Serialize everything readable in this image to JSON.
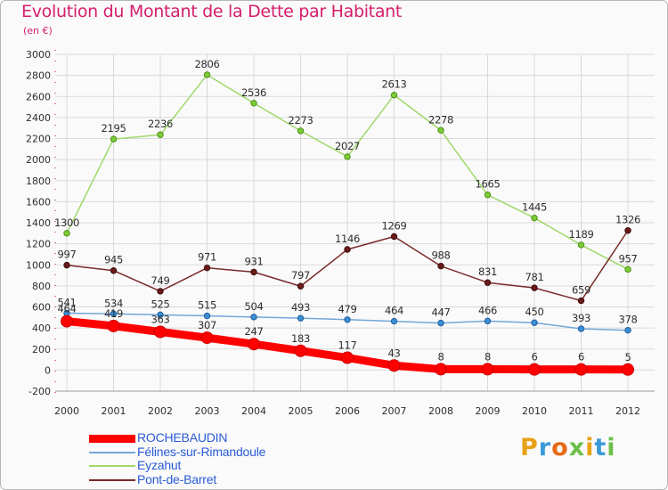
{
  "title": "Evolution du Montant de la Dette par Habitant",
  "unit": "(en €)",
  "logo": "Proxiti",
  "colors": {
    "title": "#d51d6c",
    "grid": "#d9d9d9",
    "axis": "#cc0000",
    "label": "#2d2d2d",
    "legend_text": "#2b5bd6"
  },
  "chart_data": {
    "type": "line",
    "title": "Evolution du Montant de la Dette par Habitant",
    "ylabel": "(en €)",
    "xlabel": "",
    "x": [
      "2000",
      "2001",
      "2002",
      "2003",
      "2004",
      "2005",
      "2006",
      "2007",
      "2008",
      "2009",
      "2010",
      "2011",
      "2012"
    ],
    "ylim": [
      -200,
      3000
    ],
    "yticks": [
      "-200",
      "0",
      "200",
      "400",
      "600",
      "800",
      "1000",
      "1200",
      "1400",
      "1600",
      "1800",
      "2000",
      "2200",
      "2400",
      "2600",
      "2800",
      "3000"
    ],
    "grid": true,
    "legend_position": "bottom-left",
    "series": [
      {
        "name": "ROCHEBAUDIN",
        "color": "#ff0000",
        "values": [
          464,
          419,
          363,
          307,
          247,
          183,
          117,
          43,
          8,
          8,
          6,
          6,
          5
        ],
        "labels": [
          "464",
          "419",
          "363",
          "307",
          "247",
          "183",
          "117",
          "43",
          "8",
          "8",
          "6",
          "6",
          "5"
        ]
      },
      {
        "name": "Félines-sur-Rimandoule",
        "color": "#5b9bd5",
        "values": [
          541,
          534,
          525,
          515,
          504,
          493,
          479,
          464,
          447,
          466,
          450,
          393,
          378
        ],
        "labels": [
          "541",
          "534",
          "525",
          "515",
          "504",
          "493",
          "479",
          "464",
          "447",
          "466",
          "450",
          "393",
          "378"
        ]
      },
      {
        "name": "Eyzahut",
        "color": "#92d050",
        "values": [
          1300,
          2195,
          2236,
          2806,
          2536,
          2273,
          2027,
          2613,
          2278,
          1665,
          1445,
          1189,
          957
        ],
        "labels": [
          "1300",
          "2195",
          "2236",
          "2806",
          "2536",
          "2273",
          "2027",
          "2613",
          "2278",
          "1665",
          "1445",
          "1189",
          "957"
        ]
      },
      {
        "name": "Pont-de-Barret",
        "color": "#6b1a1a",
        "values": [
          997,
          945,
          749,
          971,
          931,
          797,
          1146,
          1269,
          988,
          831,
          781,
          659,
          1326
        ],
        "labels": [
          "997",
          "945",
          "749",
          "971",
          "931",
          "797",
          "1146",
          "1269",
          "988",
          "831",
          "781",
          "659",
          "1326"
        ]
      }
    ]
  }
}
